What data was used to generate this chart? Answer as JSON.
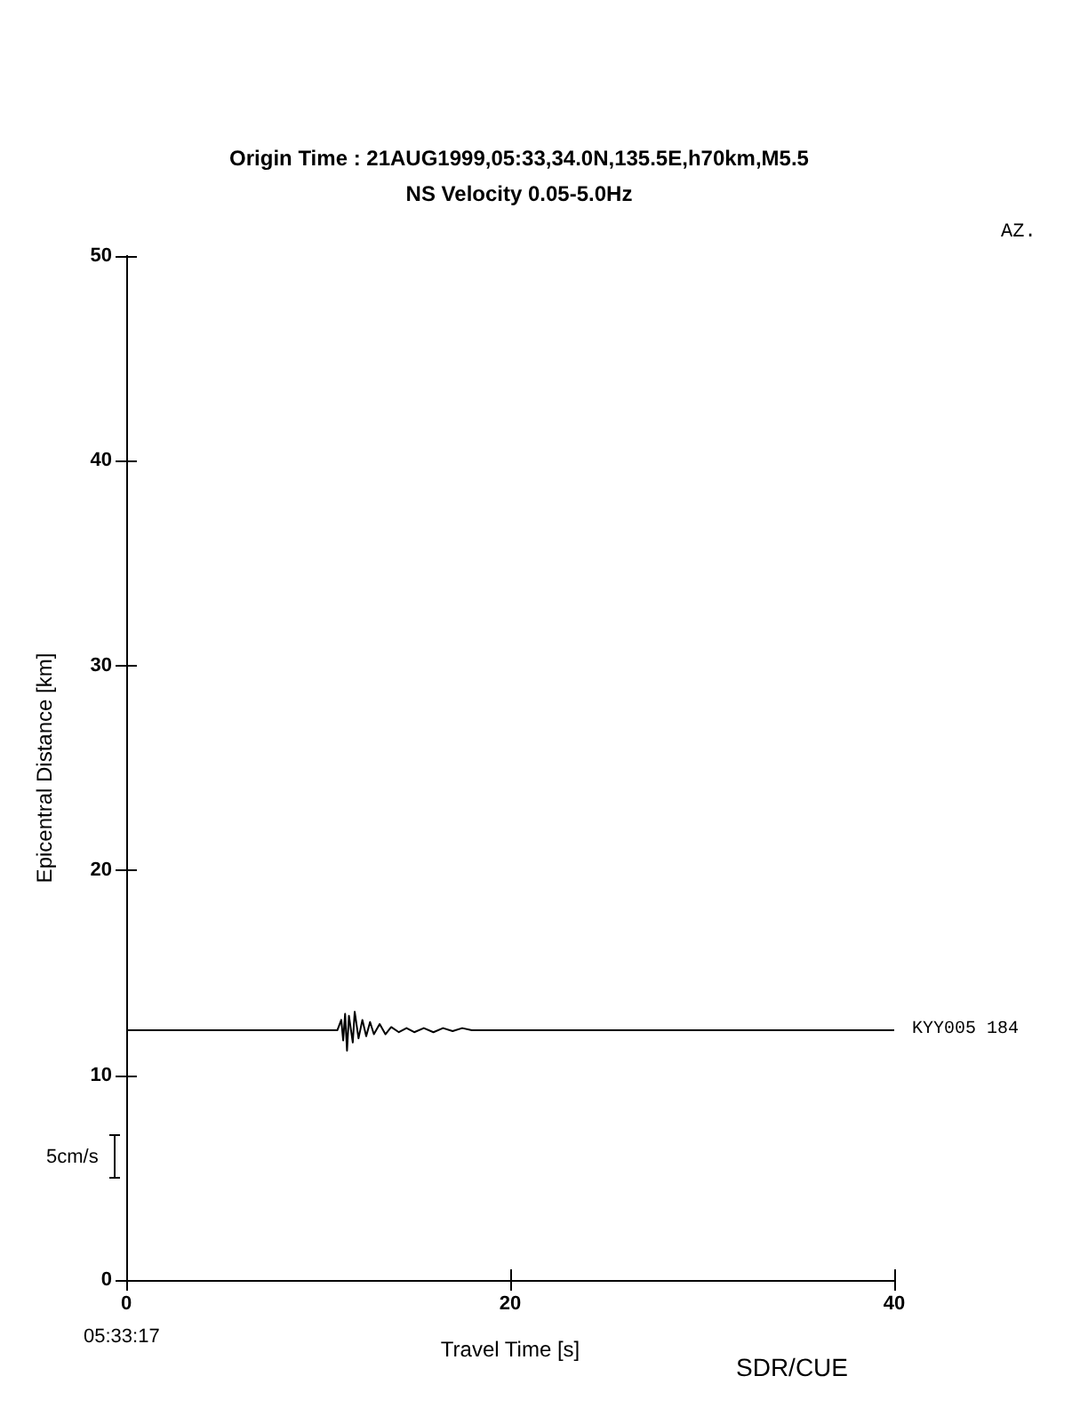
{
  "chart_data": {
    "type": "line",
    "title": "Origin Time : 21AUG1999,05:33,34.0N,135.5E,h70km,M5.5",
    "subtitle": "NS Velocity 0.05-5.0Hz",
    "xlabel": "Travel Time [s]",
    "ylabel": "Epicentral Distance [km]",
    "annotations": [
      "AZ.",
      "5cm/s",
      "05:33:17",
      "SDR/CUE"
    ],
    "xlim": [
      0,
      40
    ],
    "xticks": [
      0,
      20,
      40
    ],
    "ylim": [
      0,
      50
    ],
    "yticks": [
      0,
      10,
      20,
      30,
      40,
      50
    ],
    "grid": false,
    "legend": false,
    "marker": "none",
    "line_style": "solid",
    "series": [
      {
        "name": "KYY005 184",
        "color": "#000000",
        "x": [
          0,
          11.0,
          11.2,
          11.3,
          11.4,
          11.5,
          11.6,
          11.8,
          11.9,
          12.1,
          12.3,
          12.5,
          12.7,
          12.9,
          13.2,
          13.5,
          13.8,
          14.2,
          14.6,
          15.0,
          15.5,
          16.0,
          16.5,
          17.0,
          17.5,
          18.0,
          40
        ],
        "values": [
          12.2,
          12.2,
          12.7,
          11.7,
          13.0,
          11.2,
          12.9,
          11.6,
          13.1,
          11.8,
          12.7,
          11.9,
          12.6,
          12.0,
          12.5,
          12.0,
          12.35,
          12.1,
          12.3,
          12.1,
          12.3,
          12.1,
          12.3,
          12.15,
          12.3,
          12.2,
          12.2
        ]
      }
    ]
  }
}
